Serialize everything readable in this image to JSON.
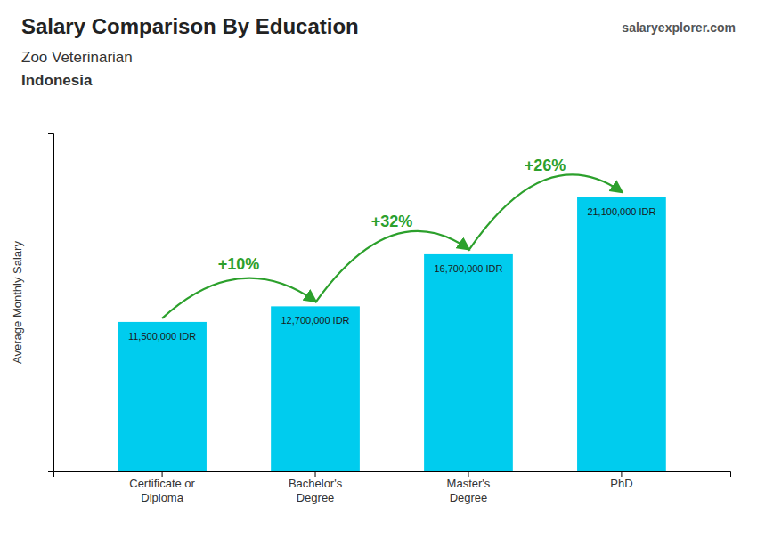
{
  "chart_data": {
    "type": "bar",
    "title": "Salary Comparison By Education",
    "subtitle": "Zoo Veterinarian",
    "country": "Indonesia",
    "source": "salaryexplorer.com",
    "y_label": "Average Monthly Salary",
    "categories": [
      "Certificate or\nDiploma",
      "Bachelor's\nDegree",
      "Master's\nDegree",
      "PhD"
    ],
    "values": [
      11500000,
      12700000,
      16700000,
      21100000
    ],
    "value_labels": [
      "11,500,000 IDR",
      "12,700,000 IDR",
      "16,700,000 IDR",
      "21,100,000 IDR"
    ],
    "annotations": [
      "+10%",
      "+32%",
      "+26%"
    ],
    "color": "#00ccee",
    "ylim": [
      0,
      26000000
    ],
    "yticks": [],
    "tick_labels": "x",
    "data_labels": true,
    "grid": false
  }
}
